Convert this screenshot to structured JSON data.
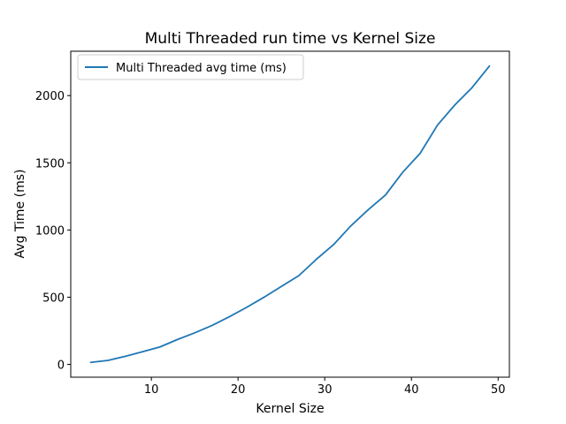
{
  "chart_data": {
    "type": "line",
    "title": "Multi Threaded run time vs Kernel Size",
    "xlabel": "Kernel Size",
    "ylabel": "Avg Time (ms)",
    "xlim": [
      0.7,
      51.3
    ],
    "ylim": [
      -95,
      2330
    ],
    "xticks": [
      10,
      20,
      30,
      40,
      50
    ],
    "yticks": [
      0,
      500,
      1000,
      1500,
      2000
    ],
    "grid": false,
    "legend_position": "top-left",
    "series": [
      {
        "name": "Multi Threaded avg time (ms)",
        "color": "#1f77b4",
        "x": [
          3,
          5,
          7,
          9,
          11,
          13,
          15,
          17,
          19,
          21,
          23,
          25,
          27,
          29,
          31,
          33,
          35,
          37,
          39,
          41,
          43,
          45,
          47,
          49
        ],
        "y": [
          15,
          30,
          60,
          95,
          130,
          185,
          235,
          290,
          355,
          425,
          500,
          580,
          660,
          780,
          890,
          1030,
          1150,
          1260,
          1430,
          1570,
          1780,
          1930,
          2060,
          2220
        ]
      }
    ]
  }
}
